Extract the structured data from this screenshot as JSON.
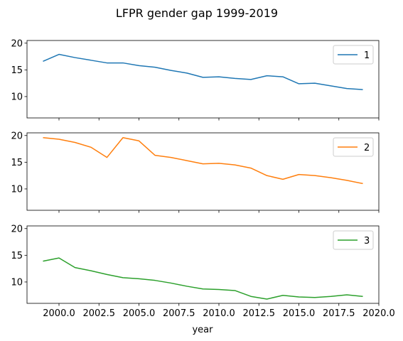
{
  "chart_data": {
    "type": "line",
    "title": "LFPR gender gap 1999-2019",
    "xlabel": "year",
    "xlim": [
      1998.0,
      2020.0
    ],
    "ylim": [
      6.0,
      20.5
    ],
    "x_ticks": [
      2000.0,
      2002.5,
      2005.0,
      2007.5,
      2010.0,
      2012.5,
      2015.0,
      2017.5,
      2020.0
    ],
    "x_tick_labels": [
      "2000.0",
      "2002.5",
      "2005.0",
      "2007.5",
      "2010.0",
      "2012.5",
      "2015.0",
      "2017.5",
      "2020.0"
    ],
    "y_ticks": [
      10,
      15,
      20
    ],
    "y_tick_labels": [
      "10",
      "15",
      "20"
    ],
    "legend_position": "upper-right",
    "x": [
      1999,
      2000,
      2001,
      2002,
      2003,
      2004,
      2005,
      2006,
      2007,
      2008,
      2009,
      2010,
      2011,
      2012,
      2013,
      2014,
      2015,
      2016,
      2017,
      2018,
      2019
    ],
    "series": [
      {
        "name": "1",
        "color": "#1f77b4",
        "values": [
          16.6,
          17.9,
          17.3,
          16.8,
          16.3,
          16.3,
          15.8,
          15.5,
          14.9,
          14.4,
          13.6,
          13.7,
          13.4,
          13.2,
          13.9,
          13.7,
          12.4,
          12.5,
          12.0,
          11.5,
          11.3
        ]
      },
      {
        "name": "2",
        "color": "#ff7f0e",
        "values": [
          19.6,
          19.3,
          18.7,
          17.8,
          15.9,
          19.6,
          19.0,
          16.3,
          15.9,
          15.3,
          14.7,
          14.8,
          14.5,
          13.9,
          12.5,
          11.8,
          12.7,
          12.5,
          12.1,
          11.6,
          11.0
        ]
      },
      {
        "name": "3",
        "color": "#2ca02c",
        "values": [
          13.9,
          14.5,
          12.7,
          12.1,
          11.4,
          10.8,
          10.6,
          10.3,
          9.8,
          9.2,
          8.7,
          8.6,
          8.4,
          7.3,
          6.8,
          7.5,
          7.2,
          7.1,
          7.3,
          7.6,
          7.3
        ]
      }
    ]
  }
}
